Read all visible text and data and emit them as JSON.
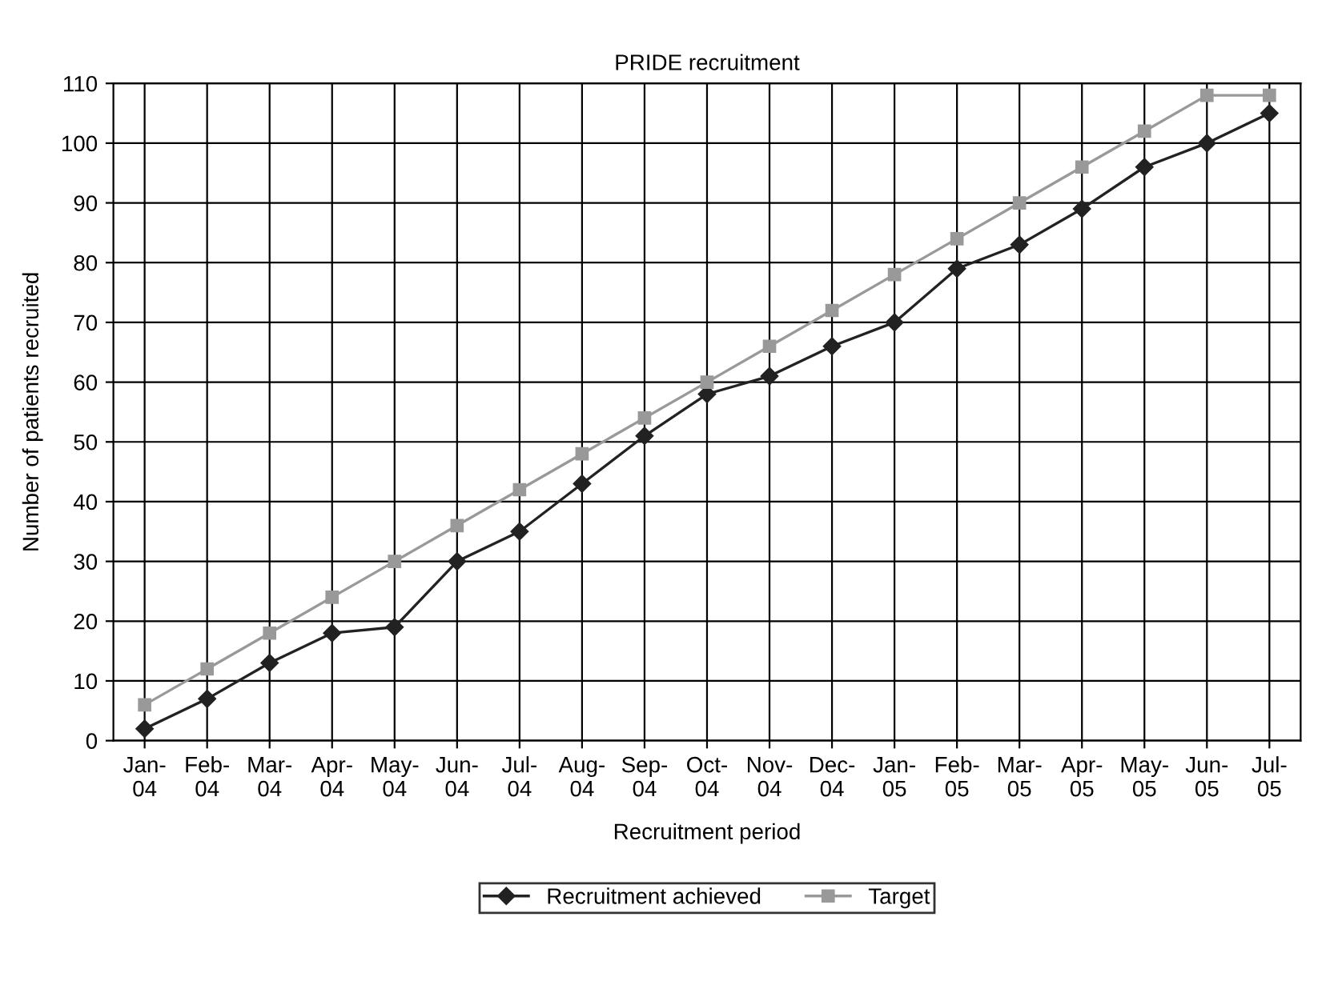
{
  "chart_data": {
    "type": "line",
    "title": "PRIDE recruitment",
    "xlabel": "Recruitment period",
    "ylabel": "Number of patients recruited",
    "categories": [
      "Jan-\n04",
      "Feb-\n04",
      "Mar-\n04",
      "Apr-\n04",
      "May-\n04",
      "Jun-\n04",
      "Jul-\n04",
      "Aug-\n04",
      "Sep-\n04",
      "Oct-\n04",
      "Nov-\n04",
      "Dec-\n04",
      "Jan-\n05",
      "Feb-\n05",
      "Mar-\n05",
      "Apr-\n05",
      "May-\n05",
      "Jun-\n05",
      "Jul-\n05"
    ],
    "series": [
      {
        "name": "Recruitment achieved",
        "color": "#222222",
        "marker": "diamond",
        "values": [
          2,
          7,
          13,
          18,
          19,
          30,
          35,
          43,
          51,
          58,
          61,
          66,
          70,
          79,
          83,
          89,
          96,
          100,
          105
        ]
      },
      {
        "name": "Target",
        "color": "#999999",
        "marker": "square",
        "values": [
          6,
          12,
          18,
          24,
          30,
          36,
          42,
          48,
          54,
          60,
          66,
          72,
          78,
          84,
          90,
          96,
          102,
          108,
          108
        ]
      }
    ],
    "ylim": [
      0,
      110
    ],
    "yticks": [
      0,
      10,
      20,
      30,
      40,
      50,
      60,
      70,
      80,
      90,
      100,
      110
    ],
    "grid": true,
    "legend": "bottom",
    "line_style": "solid"
  }
}
